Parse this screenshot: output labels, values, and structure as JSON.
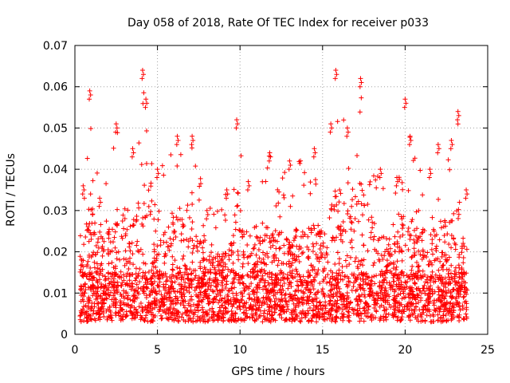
{
  "chart_data": {
    "type": "scatter",
    "title": "Day 058 of 2018, Rate Of TEC Index for receiver p033",
    "xlabel": "GPS time / hours",
    "ylabel": "ROTI / TECUs",
    "xlim": [
      0,
      25
    ],
    "ylim": [
      0,
      0.07
    ],
    "xticks": [
      0,
      5,
      10,
      15,
      20,
      25
    ],
    "xtick_labels": [
      "0",
      "5",
      "10",
      "15",
      "20",
      "25"
    ],
    "yticks": [
      0,
      0.01,
      0.02,
      0.03,
      0.04,
      0.05,
      0.06,
      0.07
    ],
    "ytick_labels": [
      "0",
      "0.01",
      "0.02",
      "0.03",
      "0.04",
      "0.05",
      "0.06",
      "0.07"
    ],
    "grid": true,
    "marker": "plus",
    "color": "#ff0000",
    "series": [
      {
        "name": "ROTI",
        "x_range": [
          0.3,
          23.8
        ],
        "typical_range": [
          0.003,
          0.015
        ],
        "envelope": [
          {
            "x": 0.5,
            "y": 0.036
          },
          {
            "x": 0.9,
            "y": 0.059
          },
          {
            "x": 1.5,
            "y": 0.033
          },
          {
            "x": 2.5,
            "y": 0.051
          },
          {
            "x": 3.5,
            "y": 0.045
          },
          {
            "x": 4.1,
            "y": 0.064
          },
          {
            "x": 4.3,
            "y": 0.057
          },
          {
            "x": 5.0,
            "y": 0.04
          },
          {
            "x": 6.2,
            "y": 0.048
          },
          {
            "x": 7.1,
            "y": 0.048
          },
          {
            "x": 8.0,
            "y": 0.03
          },
          {
            "x": 9.2,
            "y": 0.035
          },
          {
            "x": 9.8,
            "y": 0.052
          },
          {
            "x": 10.5,
            "y": 0.037
          },
          {
            "x": 11.8,
            "y": 0.044
          },
          {
            "x": 13.0,
            "y": 0.042
          },
          {
            "x": 14.5,
            "y": 0.045
          },
          {
            "x": 15.5,
            "y": 0.051
          },
          {
            "x": 15.8,
            "y": 0.064
          },
          {
            "x": 16.5,
            "y": 0.05
          },
          {
            "x": 17.3,
            "y": 0.062
          },
          {
            "x": 18.5,
            "y": 0.04
          },
          {
            "x": 19.5,
            "y": 0.038
          },
          {
            "x": 20.0,
            "y": 0.057
          },
          {
            "x": 20.3,
            "y": 0.048
          },
          {
            "x": 21.5,
            "y": 0.04
          },
          {
            "x": 22.0,
            "y": 0.046
          },
          {
            "x": 22.8,
            "y": 0.047
          },
          {
            "x": 23.2,
            "y": 0.054
          },
          {
            "x": 23.7,
            "y": 0.035
          }
        ]
      }
    ]
  }
}
